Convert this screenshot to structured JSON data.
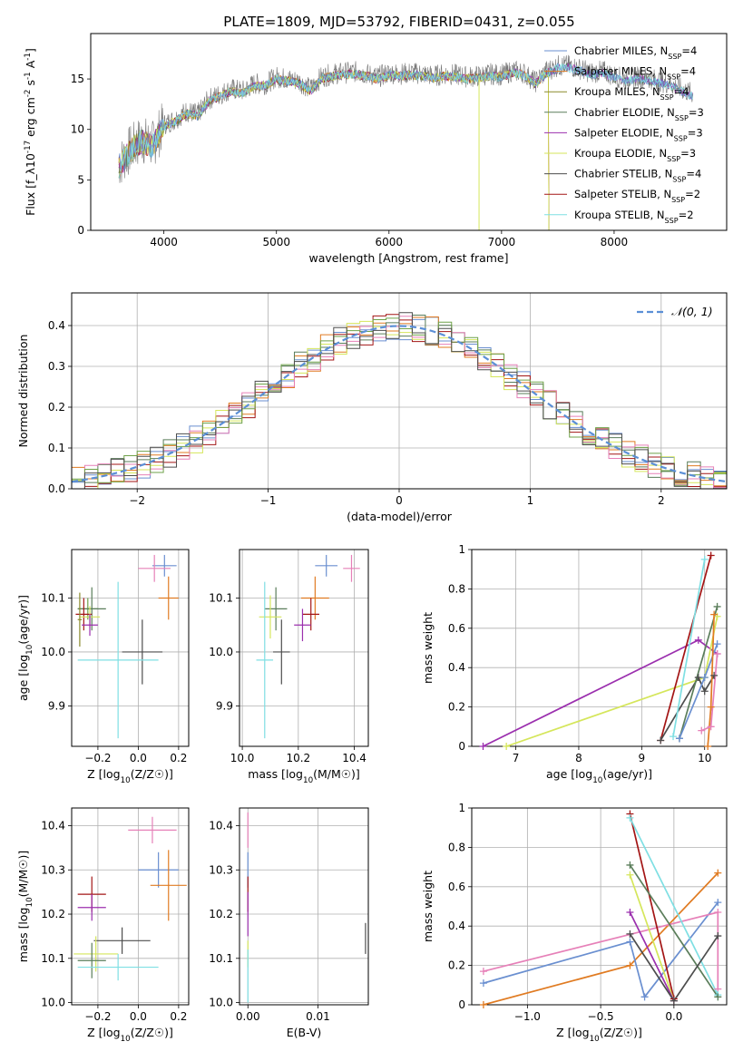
{
  "figure": {
    "title": "PLATE=1809, MJD=53792, FIBERID=0431, z=0.055"
  },
  "colors": {
    "Chabrier MILES": "#6a8fd0",
    "Salpeter MILES": "#e07b22",
    "Kroupa MILES": "#8a8a2a",
    "Chabrier ELODIE": "#5a7d5a",
    "Salpeter ELODIE": "#9b2fae",
    "Kroupa ELODIE": "#d5e65b",
    "Chabrier STELIB": "#4d4d4d",
    "Salpeter STELIB": "#a31515",
    "Kroupa STELIB": "#7fdfe3",
    "Extra": "#e680b8",
    "Extra2": "#6fa24a",
    "Normal": "#5b8fd6",
    "Spectrum": "#777777"
  },
  "chart_data": [
    {
      "id": "spectrum",
      "type": "line",
      "xlabel": "wavelength [Angstrom, rest frame]",
      "ylabel": "Flux [f_λ10^-17 erg cm^-2 s^-1 A^-1]",
      "xlim": [
        3350,
        9000
      ],
      "ylim": [
        0,
        19.5
      ],
      "xticks": [
        4000,
        5000,
        6000,
        7000,
        8000
      ],
      "yticks": [
        0,
        5,
        10,
        15
      ],
      "legend_position": "top-right",
      "legend": [
        "Chabrier MILES, N_SSP=4",
        "Salpeter MILES, N_SSP=4",
        "Kroupa MILES, N_SSP=4",
        "Chabrier ELODIE, N_SSP=3",
        "Salpeter ELODIE, N_SSP=3",
        "Kroupa ELODIE, N_SSP=3",
        "Chabrier STELIB, N_SSP=4",
        "Salpeter STELIB, N_SSP=2",
        "Kroupa STELIB, N_SSP=2"
      ],
      "envelope": {
        "x": [
          3600,
          3700,
          3800,
          3900,
          4000,
          4100,
          4200,
          4300,
          4400,
          4500,
          4600,
          4700,
          4800,
          4900,
          5000,
          5100,
          5200,
          5300,
          5400,
          5500,
          5600,
          5700,
          5800,
          5900,
          6000,
          6100,
          6200,
          6300,
          6400,
          6500,
          6600,
          6700,
          6800,
          6900,
          7000,
          7100,
          7200,
          7300,
          7400,
          7500,
          7600,
          7700,
          7800,
          7900,
          8000,
          8100,
          8200,
          8300,
          8400,
          8500,
          8600,
          8700
        ],
        "y": [
          6.5,
          8.0,
          9.0,
          8.5,
          10.5,
          11.0,
          11.8,
          11.5,
          13.0,
          13.5,
          14.0,
          13.8,
          14.5,
          14.5,
          15.2,
          15.0,
          14.8,
          14.0,
          15.2,
          15.5,
          15.6,
          15.7,
          15.5,
          15.2,
          15.6,
          15.5,
          15.6,
          15.5,
          15.3,
          15.5,
          15.4,
          15.2,
          15.3,
          15.5,
          15.4,
          15.8,
          15.6,
          14.7,
          15.8,
          16.3,
          16.3,
          16.0,
          15.6,
          15.8,
          15.3,
          15.0,
          15.2,
          15.1,
          14.8,
          14.5,
          14.0,
          13.5
        ]
      }
    },
    {
      "id": "residuals",
      "type": "histogram",
      "xlabel": "(data-model)/error",
      "ylabel": "Normed distribution",
      "xlim": [
        -2.5,
        2.5
      ],
      "ylim": [
        0,
        0.48
      ],
      "xticks": [
        -2,
        -1,
        0,
        1,
        2
      ],
      "yticks": [
        0.0,
        0.1,
        0.2,
        0.3,
        0.4
      ],
      "grid": true,
      "legend_position": "top-right",
      "legend": [
        "𝒩(0, 1)"
      ],
      "bin_width": 0.1
    },
    {
      "id": "z-age",
      "type": "errorbar",
      "xlabel": "Z [log10(Z/Z☉)]",
      "ylabel": "age [log10(age/yr)]",
      "xlim": [
        -0.33,
        0.25
      ],
      "ylim": [
        9.825,
        10.19
      ],
      "xticks": [
        -0.2,
        0.0,
        0.2
      ],
      "xticklabels": [
        "−0.2",
        "0.0",
        "0.2"
      ],
      "yticks": [
        9.9,
        10.0,
        10.1
      ],
      "yticklabels": [
        "9.9",
        "10.0",
        "10.1"
      ],
      "grid": true,
      "points": [
        {
          "c": "Chabrier MILES",
          "x": 0.13,
          "xe": 0.06,
          "y": 10.16,
          "ye": 0.02
        },
        {
          "c": "Salpeter MILES",
          "x": 0.15,
          "xe": 0.05,
          "y": 10.1,
          "ye": 0.04
        },
        {
          "c": "Extra",
          "x": 0.08,
          "xe": 0.08,
          "y": 10.155,
          "ye": 0.025
        },
        {
          "c": "Extra2",
          "x": -0.25,
          "xe": 0.05,
          "y": 10.08,
          "ye": 0.02
        },
        {
          "c": "Chabrier ELODIE",
          "x": -0.23,
          "xe": 0.07,
          "y": 10.08,
          "ye": 0.04
        },
        {
          "c": "Salpeter STELIB",
          "x": -0.27,
          "xe": 0.04,
          "y": 10.07,
          "ye": 0.03
        },
        {
          "c": "Kroupa ELODIE",
          "x": -0.24,
          "xe": 0.05,
          "y": 10.065,
          "ye": 0.02
        },
        {
          "c": "Salpeter ELODIE",
          "x": -0.24,
          "xe": 0.04,
          "y": 10.05,
          "ye": 0.02
        },
        {
          "c": "Chabrier STELIB",
          "x": 0.02,
          "xe": 0.1,
          "y": 10.0,
          "ye": 0.06
        },
        {
          "c": "Kroupa STELIB",
          "x": -0.1,
          "xe": 0.2,
          "y": 9.985,
          "ye": 0.145
        },
        {
          "c": "Kroupa MILES",
          "x": -0.29,
          "xe": 0.01,
          "y": 10.06,
          "ye": 0.05
        }
      ]
    },
    {
      "id": "mass-age",
      "type": "errorbar",
      "xlabel": "mass [log10(M/M☉)]",
      "ylabel": "",
      "xlim": [
        9.99,
        10.45
      ],
      "ylim": [
        9.825,
        10.19
      ],
      "xticks": [
        10.0,
        10.2,
        10.4
      ],
      "xticklabels": [
        "10.0",
        "10.2",
        "10.4"
      ],
      "yticks": [
        9.9,
        10.0,
        10.1
      ],
      "yticklabels": [
        "9.9",
        "10.0",
        "10.1"
      ],
      "grid": true,
      "points": [
        {
          "c": "Chabrier MILES",
          "x": 10.3,
          "xe": 0.04,
          "y": 10.16,
          "ye": 0.02
        },
        {
          "c": "Extra",
          "x": 10.39,
          "xe": 0.03,
          "y": 10.155,
          "ye": 0.025
        },
        {
          "c": "Salpeter MILES",
          "x": 10.26,
          "xe": 0.05,
          "y": 10.1,
          "ye": 0.04
        },
        {
          "c": "Chabrier ELODIE",
          "x": 10.12,
          "xe": 0.04,
          "y": 10.08,
          "ye": 0.04
        },
        {
          "c": "Salpeter STELIB",
          "x": 10.245,
          "xe": 0.03,
          "y": 10.07,
          "ye": 0.03
        },
        {
          "c": "Kroupa ELODIE",
          "x": 10.1,
          "xe": 0.04,
          "y": 10.065,
          "ye": 0.04
        },
        {
          "c": "Salpeter ELODIE",
          "x": 10.215,
          "xe": 0.03,
          "y": 10.05,
          "ye": 0.03
        },
        {
          "c": "Chabrier STELIB",
          "x": 10.14,
          "xe": 0.03,
          "y": 10.0,
          "ye": 0.06
        },
        {
          "c": "Kroupa STELIB",
          "x": 10.08,
          "xe": 0.03,
          "y": 9.985,
          "ye": 0.145
        }
      ]
    },
    {
      "id": "age-weight",
      "type": "line",
      "xlabel": "age [log10(age/yr)]",
      "ylabel": "mass weight",
      "xlim": [
        6.3,
        10.35
      ],
      "ylim": [
        0,
        1.0
      ],
      "xticks": [
        7,
        8,
        9,
        10
      ],
      "yticks": [
        0.0,
        0.2,
        0.4,
        0.6,
        0.8,
        1.0
      ],
      "grid": true,
      "series": [
        {
          "c": "Salpeter ELODIE",
          "x": [
            6.48,
            9.9,
            10.2
          ],
          "y": [
            0.0,
            0.54,
            0.47
          ]
        },
        {
          "c": "Kroupa ELODIE",
          "x": [
            6.85,
            10.0,
            10.2
          ],
          "y": [
            0.0,
            0.35,
            0.66
          ]
        },
        {
          "c": "Salpeter STELIB",
          "x": [
            9.3,
            10.1
          ],
          "y": [
            0.03,
            0.97
          ]
        },
        {
          "c": "Chabrier STELIB",
          "x": [
            9.3,
            9.9,
            10.0,
            10.15
          ],
          "y": [
            0.03,
            0.35,
            0.28,
            0.36
          ]
        },
        {
          "c": "Kroupa STELIB",
          "x": [
            9.5,
            10.0
          ],
          "y": [
            0.05,
            0.95
          ]
        },
        {
          "c": "Chabrier ELODIE",
          "x": [
            9.6,
            10.2
          ],
          "y": [
            0.04,
            0.71
          ]
        },
        {
          "c": "Chabrier MILES",
          "x": [
            9.6,
            10.0,
            10.2
          ],
          "y": [
            0.04,
            0.35,
            0.52
          ]
        },
        {
          "c": "Salpeter MILES",
          "x": [
            10.05,
            10.1,
            10.15
          ],
          "y": [
            0.0,
            0.2,
            0.67
          ]
        },
        {
          "c": "Extra",
          "x": [
            9.95,
            10.1,
            10.2
          ],
          "y": [
            0.08,
            0.1,
            0.47
          ]
        }
      ]
    },
    {
      "id": "z-mass",
      "type": "errorbar",
      "xlabel": "Z [log10(Z/Z☉)]",
      "ylabel": "mass [log10(M/M☉)]",
      "xlim": [
        -0.33,
        0.25
      ],
      "ylim": [
        9.995,
        10.44
      ],
      "xticks": [
        -0.2,
        0.0,
        0.2
      ],
      "xticklabels": [
        "−0.2",
        "0.0",
        "0.2"
      ],
      "yticks": [
        10.0,
        10.1,
        10.2,
        10.3,
        10.4
      ],
      "yticklabels": [
        "10.0",
        "10.1",
        "10.2",
        "10.3",
        "10.4"
      ],
      "grid": true,
      "points": [
        {
          "c": "Extra",
          "x": 0.07,
          "xe": 0.12,
          "y": 10.39,
          "ye": 0.03
        },
        {
          "c": "Chabrier MILES",
          "x": 0.1,
          "xe": 0.1,
          "y": 10.3,
          "ye": 0.04
        },
        {
          "c": "Salpeter MILES",
          "x": 0.15,
          "xe": 0.09,
          "y": 10.265,
          "ye": 0.08
        },
        {
          "c": "Salpeter STELIB",
          "x": -0.23,
          "xe": 0.07,
          "y": 10.245,
          "ye": 0.04
        },
        {
          "c": "Salpeter ELODIE",
          "x": -0.23,
          "xe": 0.07,
          "y": 10.215,
          "ye": 0.03
        },
        {
          "c": "Chabrier STELIB",
          "x": -0.08,
          "xe": 0.14,
          "y": 10.14,
          "ye": 0.03
        },
        {
          "c": "Kroupa ELODIE",
          "x": -0.21,
          "xe": 0.11,
          "y": 10.11,
          "ye": 0.04
        },
        {
          "c": "Chabrier ELODIE",
          "x": -0.23,
          "xe": 0.07,
          "y": 10.095,
          "ye": 0.04
        },
        {
          "c": "Kroupa STELIB",
          "x": -0.1,
          "xe": 0.2,
          "y": 10.08,
          "ye": 0.03
        }
      ]
    },
    {
      "id": "ebv-mass",
      "type": "errorbar",
      "xlabel": "E(B-V)",
      "ylabel": "",
      "xlim": [
        -0.0012,
        0.0172
      ],
      "ylim": [
        9.995,
        10.44
      ],
      "xticks": [
        0.0,
        0.01
      ],
      "xticklabels": [
        "0.00",
        "0.01"
      ],
      "yticks": [
        10.0,
        10.1,
        10.2,
        10.3,
        10.4
      ],
      "yticklabels": [
        "10.0",
        "10.1",
        "10.2",
        "10.3",
        "10.4"
      ],
      "grid": true,
      "points": [
        {
          "c": "Extra",
          "x": 0.0,
          "xe": 0.0,
          "y": 10.39,
          "ye": 0.04
        },
        {
          "c": "Chabrier MILES",
          "x": 0.0,
          "xe": 0.0,
          "y": 10.3,
          "ye": 0.04
        },
        {
          "c": "Salpeter STELIB",
          "x": 0.0,
          "xe": 0.0,
          "y": 10.245,
          "ye": 0.04
        },
        {
          "c": "Salpeter ELODIE",
          "x": 0.0,
          "xe": 0.0,
          "y": 10.2,
          "ye": 0.05
        },
        {
          "c": "Kroupa ELODIE",
          "x": 0.0,
          "xe": 0.0,
          "y": 10.11,
          "ye": 0.03
        },
        {
          "c": "Kroupa STELIB",
          "x": 0.0,
          "xe": 0.0,
          "y": 10.06,
          "ye": 0.06
        },
        {
          "c": "Chabrier STELIB",
          "x": 0.0168,
          "xe": 0.0,
          "y": 10.145,
          "ye": 0.035
        }
      ]
    },
    {
      "id": "z-weight",
      "type": "line",
      "xlabel": "Z [log10(Z/Z☉)]",
      "ylabel": "mass weight",
      "xlim": [
        -1.38,
        0.36
      ],
      "ylim": [
        0,
        1.0
      ],
      "xticks": [
        -1.0,
        -0.5,
        0.0
      ],
      "xticklabels": [
        "−1.0",
        "−0.5",
        "0.0"
      ],
      "yticks": [
        0.0,
        0.2,
        0.4,
        0.6,
        0.8,
        1.0
      ],
      "grid": true,
      "series": [
        {
          "c": "Salpeter MILES",
          "x": [
            -1.3,
            -0.3,
            0.3
          ],
          "y": [
            0.0,
            0.2,
            0.67
          ]
        },
        {
          "c": "Chabrier MILES",
          "x": [
            -1.3,
            -0.3,
            -0.2,
            0.3
          ],
          "y": [
            0.11,
            0.32,
            0.04,
            0.52
          ]
        },
        {
          "c": "Extra",
          "x": [
            -1.3,
            0.3,
            0.3
          ],
          "y": [
            0.17,
            0.47,
            0.08
          ]
        },
        {
          "c": "Salpeter STELIB",
          "x": [
            -0.3,
            0.0
          ],
          "y": [
            0.97,
            0.03
          ]
        },
        {
          "c": "Kroupa STELIB",
          "x": [
            -0.3,
            0.3
          ],
          "y": [
            0.95,
            0.05
          ]
        },
        {
          "c": "Chabrier ELODIE",
          "x": [
            -0.3,
            0.3
          ],
          "y": [
            0.71,
            0.04
          ]
        },
        {
          "c": "Kroupa ELODIE",
          "x": [
            -0.3,
            0.0
          ],
          "y": [
            0.66,
            0.02
          ]
        },
        {
          "c": "Salpeter ELODIE",
          "x": [
            -0.3,
            0.0
          ],
          "y": [
            0.47,
            0.02
          ]
        },
        {
          "c": "Chabrier STELIB",
          "x": [
            -0.3,
            0.0,
            0.3
          ],
          "y": [
            0.36,
            0.02,
            0.35
          ]
        }
      ]
    }
  ]
}
